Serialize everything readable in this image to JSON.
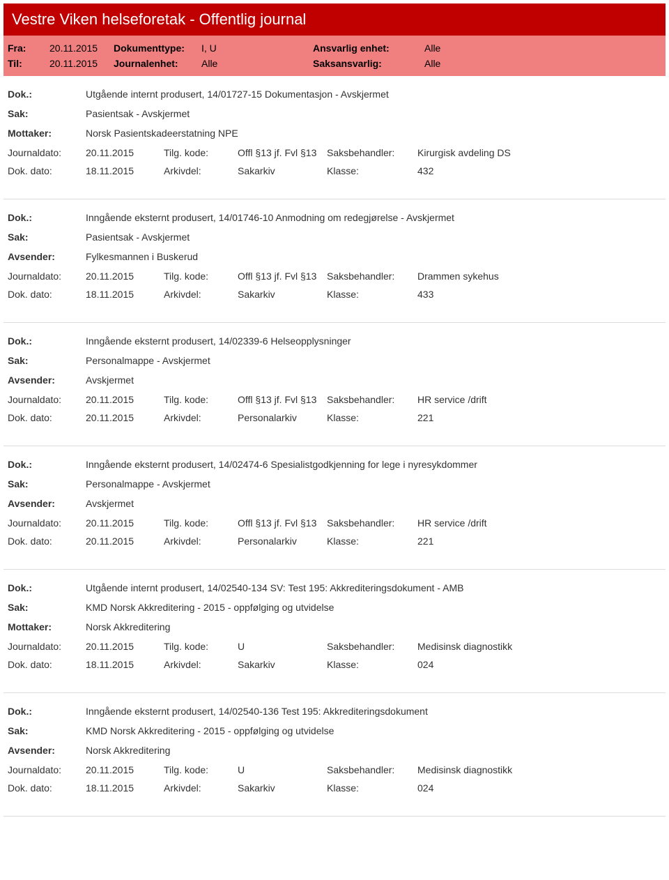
{
  "header": {
    "title": "Vestre Viken helseforetak - Offentlig journal",
    "bg_color": "#c00000",
    "filter_bg": "#f08080"
  },
  "filters": {
    "fra_label": "Fra:",
    "fra_value": "20.11.2015",
    "til_label": "Til:",
    "til_value": "20.11.2015",
    "doktype_label": "Dokumenttype:",
    "doktype_value": "I, U",
    "journalenhet_label": "Journalenhet:",
    "journalenhet_value": "Alle",
    "ansvarlig_label": "Ansvarlig enhet:",
    "ansvarlig_value": "Alle",
    "saksansvarlig_label": "Saksansvarlig:",
    "saksansvarlig_value": "Alle"
  },
  "labels": {
    "dok": "Dok.:",
    "sak": "Sak:",
    "mottaker": "Mottaker:",
    "avsender": "Avsender:",
    "journaldato": "Journaldato:",
    "dokdato": "Dok. dato:",
    "tilgkode": "Tilg. kode:",
    "arkivdel": "Arkivdel:",
    "saksbehandler": "Saksbehandler:",
    "klasse": "Klasse:"
  },
  "records": [
    {
      "dok": "Utgående internt produsert, 14/01727-15 Dokumentasjon - Avskjermet",
      "sak": "Pasientsak - Avskjermet",
      "party_label": "Mottaker:",
      "party_value": "Norsk Pasientskadeerstatning NPE",
      "journaldato": "20.11.2015",
      "tilgkode": "Offl §13 jf. Fvl §13",
      "saksbehandler": "Kirurgisk avdeling DS",
      "dokdato": "18.11.2015",
      "arkivdel": "Sakarkiv",
      "klasse": "432"
    },
    {
      "dok": "Inngående eksternt produsert, 14/01746-10 Anmodning om redegjørelse - Avskjermet",
      "sak": "Pasientsak - Avskjermet",
      "party_label": "Avsender:",
      "party_value": "Fylkesmannen i Buskerud",
      "journaldato": "20.11.2015",
      "tilgkode": "Offl §13 jf. Fvl §13",
      "saksbehandler": "Drammen sykehus",
      "dokdato": "18.11.2015",
      "arkivdel": "Sakarkiv",
      "klasse": "433"
    },
    {
      "dok": "Inngående eksternt produsert, 14/02339-6 Helseopplysninger",
      "sak": "Personalmappe - Avskjermet",
      "party_label": "Avsender:",
      "party_value": "Avskjermet",
      "journaldato": "20.11.2015",
      "tilgkode": "Offl §13 jf. Fvl §13",
      "saksbehandler": "HR service /drift",
      "dokdato": "20.11.2015",
      "arkivdel": "Personalarkiv",
      "klasse": "221"
    },
    {
      "dok": "Inngående eksternt produsert, 14/02474-6 Spesialistgodkjenning for lege i nyresykdommer",
      "sak": "Personalmappe - Avskjermet",
      "party_label": "Avsender:",
      "party_value": "Avskjermet",
      "journaldato": "20.11.2015",
      "tilgkode": "Offl §13 jf. Fvl §13",
      "saksbehandler": "HR service /drift",
      "dokdato": "20.11.2015",
      "arkivdel": "Personalarkiv",
      "klasse": "221"
    },
    {
      "dok": "Utgående internt produsert, 14/02540-134 SV: Test 195: Akkrediteringsdokument - AMB",
      "sak": "KMD Norsk Akkreditering - 2015 - oppfølging og utvidelse",
      "party_label": "Mottaker:",
      "party_value": "Norsk Akkreditering",
      "journaldato": "20.11.2015",
      "tilgkode": "U",
      "saksbehandler": "Medisinsk diagnostikk",
      "dokdato": "18.11.2015",
      "arkivdel": "Sakarkiv",
      "klasse": "024"
    },
    {
      "dok": "Inngående eksternt produsert, 14/02540-136 Test 195: Akkrediteringsdokument",
      "sak": "KMD Norsk Akkreditering - 2015 - oppfølging og utvidelse",
      "party_label": "Avsender:",
      "party_value": "Norsk Akkreditering",
      "journaldato": "20.11.2015",
      "tilgkode": "U",
      "saksbehandler": "Medisinsk diagnostikk",
      "dokdato": "18.11.2015",
      "arkivdel": "Sakarkiv",
      "klasse": "024"
    }
  ]
}
